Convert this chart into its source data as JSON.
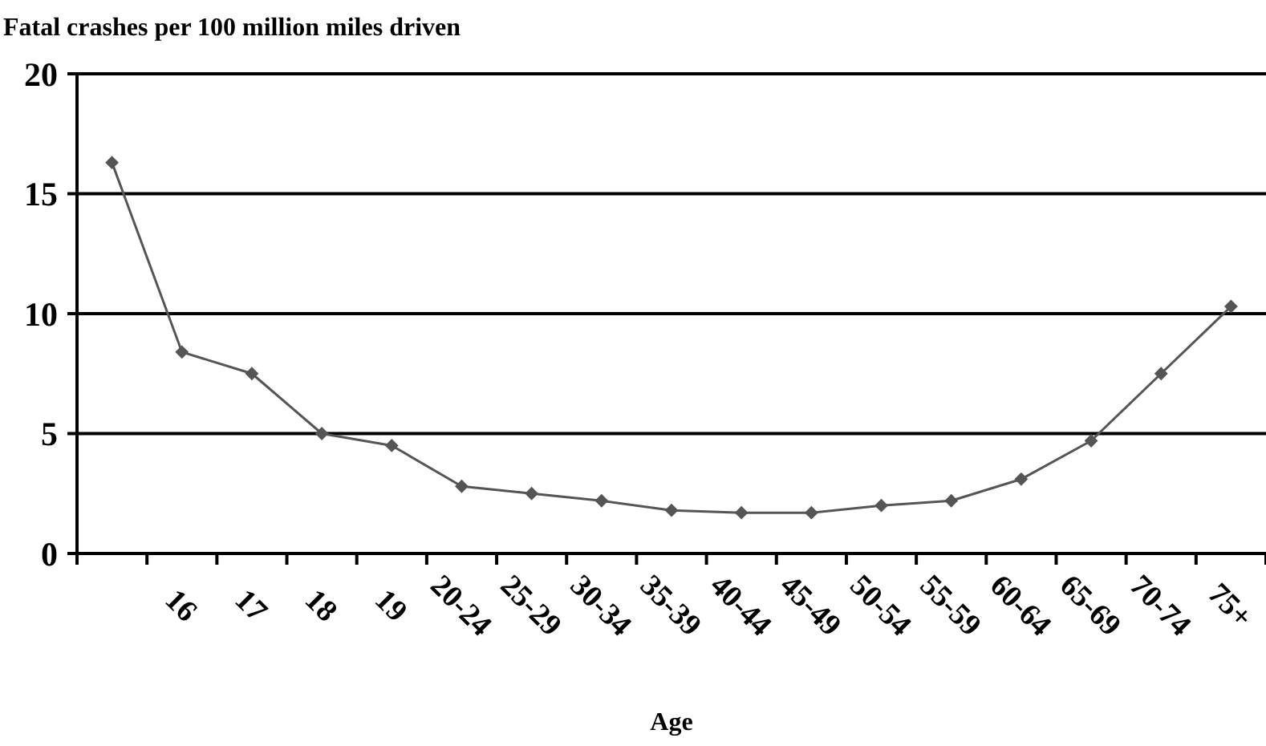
{
  "chart_data": {
    "type": "line",
    "title": "Fatal crashes per 100 million miles driven",
    "xlabel": "Age",
    "categories": [
      null,
      "16",
      "17",
      "18",
      "19",
      "20-24",
      "25-29",
      "30-34",
      "35-39",
      "40-44",
      "45-49",
      "50-54",
      "55-59",
      "60-64",
      "65-69",
      "70-74",
      "75+"
    ],
    "series": [
      {
        "color": "#555555",
        "values": [
          16.3,
          8.4,
          7.5,
          5.0,
          4.5,
          2.8,
          2.5,
          2.2,
          1.8,
          1.7,
          1.7,
          2.0,
          2.2,
          3.1,
          4.7,
          7.5,
          10.3
        ]
      }
    ],
    "ylim": [
      0,
      20
    ],
    "yticks": [
      0,
      5,
      10,
      15,
      20
    ],
    "grid": "y",
    "marker": "diamond",
    "line_style": "solid"
  }
}
